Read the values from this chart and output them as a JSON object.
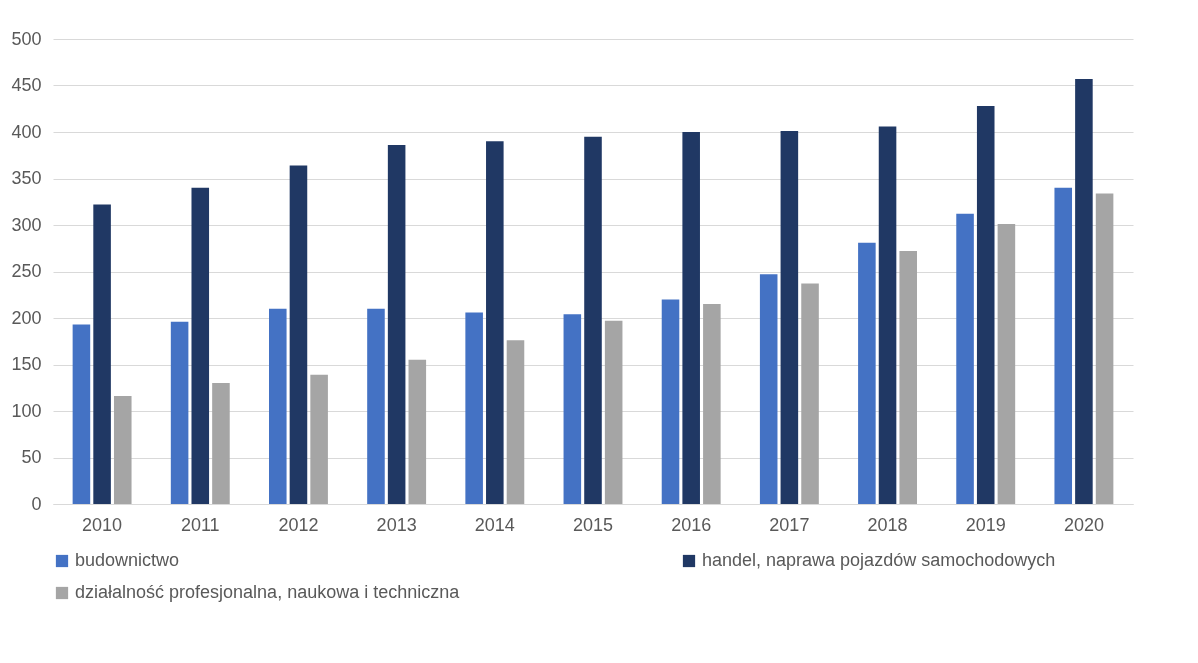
{
  "chart_data": {
    "type": "bar",
    "categories": [
      "2010",
      "2011",
      "2012",
      "2013",
      "2014",
      "2015",
      "2016",
      "2017",
      "2018",
      "2019",
      "2020"
    ],
    "series": [
      {
        "name": "budownictwo",
        "color": "#4472c4",
        "values": [
          193,
          196,
          210,
          210,
          206,
          204,
          220,
          247,
          281,
          312,
          340
        ]
      },
      {
        "name": "handel, naprawa pojazdów samochodowych",
        "color": "#203864",
        "values": [
          322,
          340,
          364,
          386,
          390,
          395,
          400,
          401,
          406,
          428,
          457
        ]
      },
      {
        "name": "działalność profesjonalna, naukowa i techniczna",
        "color": "#a5a5a5",
        "values": [
          116,
          130,
          139,
          155,
          176,
          197,
          215,
          237,
          272,
          301,
          334
        ]
      }
    ],
    "ylim": [
      0,
      500
    ],
    "yticks": [
      0,
      50,
      100,
      150,
      200,
      250,
      300,
      350,
      400,
      450,
      500
    ],
    "grid": "y",
    "legend": "bottom"
  }
}
